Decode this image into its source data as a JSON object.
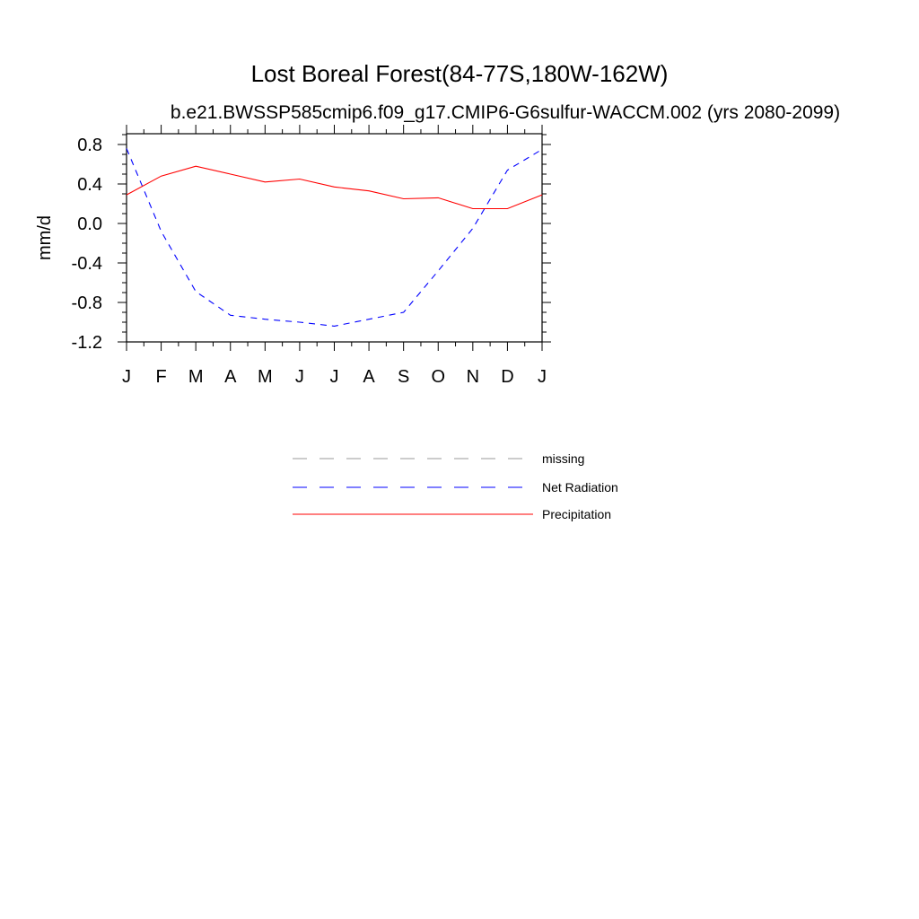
{
  "chart_data": {
    "type": "line",
    "title": "Lost Boreal Forest(84-77S,180W-162W)",
    "subtitle": "b.e21.BWSSP585cmip6.f09_g17.CMIP6-G6sulfur-WACCM.002 (yrs 2080-2099)",
    "xlabel": "",
    "ylabel": "mm/d",
    "categories": [
      "J",
      "F",
      "M",
      "A",
      "M",
      "J",
      "J",
      "A",
      "S",
      "O",
      "N",
      "D",
      "J"
    ],
    "ylim": [
      -1.2,
      0.9
    ],
    "yticks": [
      -1.2,
      -0.8,
      -0.4,
      0.0,
      0.4,
      0.8
    ],
    "ytick_labels": [
      "-1.2",
      "-0.8",
      "-0.4",
      "0.0",
      "0.4",
      "0.8"
    ],
    "series": [
      {
        "name": "Net Radiation",
        "color": "#0000ff",
        "dash": "dashed",
        "values": [
          0.76,
          -0.08,
          -0.69,
          -0.93,
          -0.97,
          -1.0,
          -1.04,
          -0.97,
          -0.9,
          -0.48,
          -0.05,
          0.54,
          0.75
        ]
      },
      {
        "name": "Precipitation",
        "color": "#ff0000",
        "dash": "solid",
        "values": [
          0.29,
          0.48,
          0.58,
          0.5,
          0.42,
          0.45,
          0.37,
          0.33,
          0.25,
          0.26,
          0.15,
          0.15,
          0.29
        ]
      }
    ],
    "legend": {
      "position": "below",
      "entries": [
        {
          "label": "missing",
          "color": "#999999",
          "dash": "dashed"
        },
        {
          "label": "Net Radiation",
          "color": "#0000ff",
          "dash": "dashed"
        },
        {
          "label": "Precipitation",
          "color": "#ff0000",
          "dash": "solid"
        }
      ]
    },
    "grid": false
  }
}
